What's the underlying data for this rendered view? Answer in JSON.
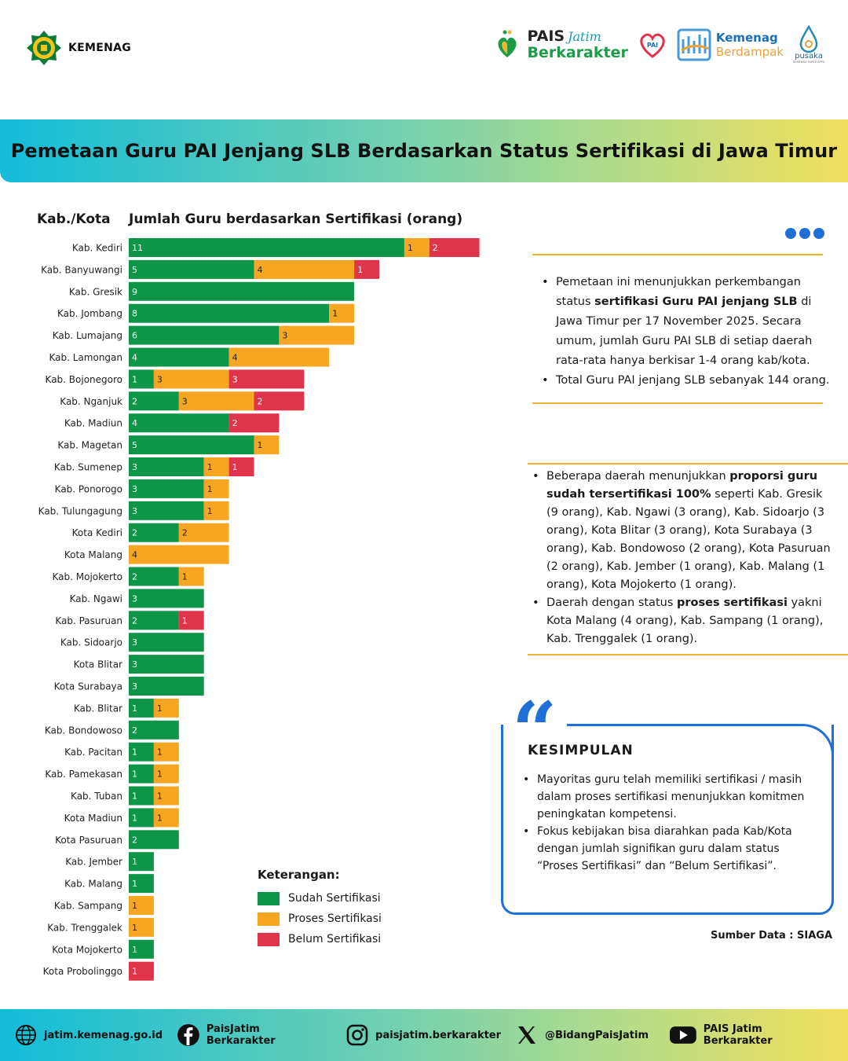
{
  "header": {
    "kemenag_label": "KEMENAG",
    "pais_line1": "PAIS",
    "pais_script": "Jatim",
    "pais_line2": "Berkarakter",
    "welove_text": "We Love PAI",
    "kb_line1": "Kemenag",
    "kb_line2": "Berdampak",
    "pusaka_label": "pusaka",
    "pusaka_sub": "KEMENAG SUPER APPS"
  },
  "title": "Pemetaan Guru PAI Jenjang SLB Berdasarkan Status Sertifikasi di Jawa Timur",
  "chart_headings": {
    "left": "Kab./Kota",
    "right": "Jumlah Guru berdasarkan Sertifikasi (orang)"
  },
  "colors": {
    "sudah": "#0e9547",
    "proses": "#f6a623",
    "belum": "#e0344a",
    "accent_blue": "#1f6fd6",
    "accent_yellow": "#f0b331"
  },
  "chart_data": {
    "type": "bar",
    "orientation": "horizontal",
    "stacked": true,
    "categories": [
      "Kab. Kediri",
      "Kab. Banyuwangi",
      "Kab. Gresik",
      "Kab. Jombang",
      "Kab. Lumajang",
      "Kab. Lamongan",
      "Kab. Bojonegoro",
      "Kab. Nganjuk",
      "Kab. Madiun",
      "Kab. Magetan",
      "Kab. Sumenep",
      "Kab. Ponorogo",
      "Kab. Tulungagung",
      "Kota Kediri",
      "Kota Malang",
      "Kab. Mojokerto",
      "Kab. Ngawi",
      "Kab. Pasuruan",
      "Kab. Sidoarjo",
      "Kota Blitar",
      "Kota Surabaya",
      "Kab. Blitar",
      "Kab. Bondowoso",
      "Kab. Pacitan",
      "Kab. Pamekasan",
      "Kab. Tuban",
      "Kota Madiun",
      "Kota Pasuruan",
      "Kab. Jember",
      "Kab. Malang",
      "Kab. Sampang",
      "Kab. Trenggalek",
      "Kota Mojokerto",
      "Kota Probolinggo"
    ],
    "series": [
      {
        "name": "Sudah Sertifikasi",
        "values": [
          11,
          5,
          9,
          8,
          6,
          4,
          1,
          2,
          4,
          5,
          3,
          3,
          3,
          2,
          0,
          2,
          3,
          2,
          3,
          3,
          3,
          1,
          2,
          1,
          1,
          1,
          1,
          2,
          1,
          1,
          0,
          0,
          1,
          0
        ]
      },
      {
        "name": "Proses Sertifikasi",
        "values": [
          1,
          4,
          0,
          1,
          3,
          4,
          3,
          3,
          0,
          1,
          1,
          1,
          1,
          2,
          4,
          1,
          0,
          0,
          0,
          0,
          0,
          1,
          0,
          1,
          1,
          1,
          1,
          0,
          0,
          0,
          1,
          1,
          0,
          0
        ]
      },
      {
        "name": "Belum Sertifikasi",
        "values": [
          2,
          1,
          0,
          0,
          0,
          0,
          3,
          2,
          2,
          0,
          1,
          0,
          0,
          0,
          0,
          0,
          0,
          1,
          0,
          0,
          0,
          0,
          0,
          0,
          0,
          0,
          0,
          0,
          0,
          0,
          0,
          0,
          0,
          1
        ]
      }
    ]
  },
  "legend": {
    "title": "Keterangan:",
    "items": [
      "Sudah Sertifikasi",
      "Proses Sertifikasi",
      "Belum Sertifikasi"
    ]
  },
  "panel1": {
    "b1_pre": "Pemetaan ini menunjukkan perkembangan status ",
    "b1_bold": "sertifikasi Guru PAI jenjang SLB",
    "b1_post": " di Jawa Timur per 17 November 2025. Secara umum, jumlah Guru PAI SLB di setiap daerah rata-rata hanya berkisar 1-4 orang kab/kota.",
    "b2": "Total Guru PAI jenjang SLB sebanyak 144 orang."
  },
  "panel2": {
    "b1_pre": "Beberapa daerah menunjukkan ",
    "b1_bold": "proporsi guru sudah tersertifikasi 100%",
    "b1_post": " seperti Kab. Gresik (9 orang), Kab. Ngawi (3 orang), Kab. Sidoarjo (3 orang), Kota Blitar (3 orang), Kota Surabaya (3 orang), Kab. Bondowoso (2 orang), Kota Pasuruan (2 orang), Kab. Jember (1 orang), Kab. Malang (1 orang), Kota Mojokerto (1 orang).",
    "b2_pre": "Daerah dengan status ",
    "b2_bold": "proses sertifikasi",
    "b2_post": " yakni Kota Malang (4 orang), Kab. Sampang (1 orang), Kab. Trenggalek (1 orang)."
  },
  "conclusion": {
    "title": "KESIMPULAN",
    "items": [
      "Mayoritas guru telah memiliki sertifikasi / masih dalam proses sertifikasi menunjukkan komitmen peningkatan kompetensi.",
      "Fokus kebijakan bisa diarahkan pada Kab/Kota dengan jumlah signifikan guru dalam status “Proses Sertifikasi” dan “Belum Sertifikasi”."
    ]
  },
  "source": "Sumber Data : SIAGA",
  "footer": {
    "web": "jatim.kemenag.go.id",
    "facebook": "PaisJatim Berkarakter",
    "instagram": "paisjatim.berkarakter",
    "x": "@BidangPaisJatim",
    "youtube": "PAIS Jatim Berkarakter"
  }
}
